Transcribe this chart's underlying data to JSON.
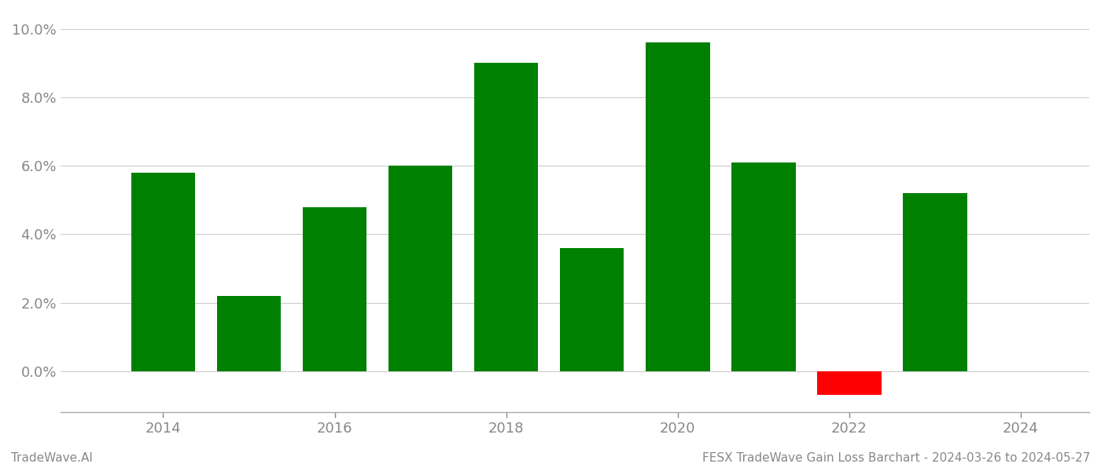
{
  "years": [
    2014,
    2015,
    2016,
    2017,
    2018,
    2019,
    2020,
    2021,
    2022,
    2023
  ],
  "values": [
    0.058,
    0.022,
    0.048,
    0.06,
    0.09,
    0.036,
    0.096,
    0.061,
    -0.007,
    0.052
  ],
  "colors": [
    "#008000",
    "#008000",
    "#008000",
    "#008000",
    "#008000",
    "#008000",
    "#008000",
    "#008000",
    "#ff0000",
    "#008000"
  ],
  "ylim": [
    -0.012,
    0.105
  ],
  "yticks": [
    0.0,
    0.02,
    0.04,
    0.06,
    0.08,
    0.1
  ],
  "xlim": [
    2012.8,
    2024.8
  ],
  "xticks": [
    2014,
    2016,
    2018,
    2020,
    2022,
    2024
  ],
  "title_left": "TradeWave.AI",
  "title_right": "FESX TradeWave Gain Loss Barchart - 2024-03-26 to 2024-05-27",
  "title_fontsize": 11,
  "axis_label_color": "#888888",
  "background_color": "#ffffff",
  "grid_color": "#cccccc",
  "bar_width": 0.75
}
